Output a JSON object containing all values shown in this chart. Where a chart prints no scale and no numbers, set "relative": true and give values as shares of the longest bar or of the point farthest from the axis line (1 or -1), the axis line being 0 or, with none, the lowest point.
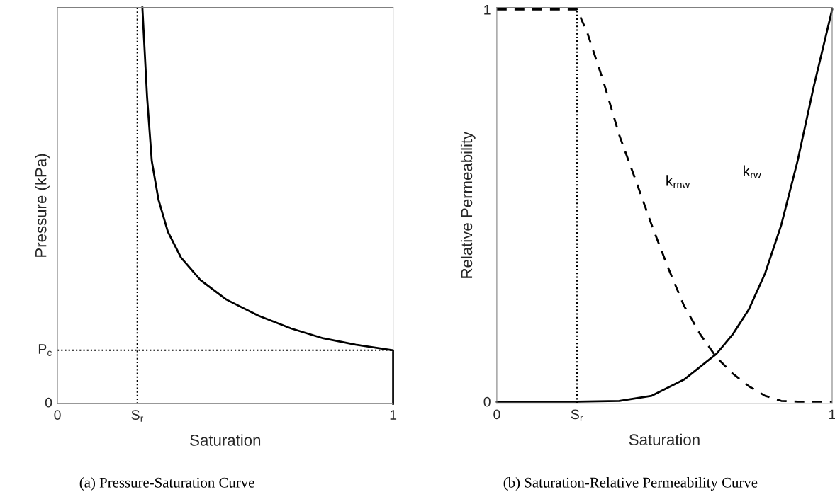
{
  "chart_data": [
    {
      "type": "line",
      "xlabel": "Saturation",
      "ylabel": "Pressure (kPa)",
      "xlim": [
        0,
        1
      ],
      "relative": true,
      "xticks": [
        0,
        {
          "value": 0.238,
          "label": "S$_{r}$"
        },
        1
      ],
      "series": [
        {
          "color": "#000000",
          "line_style": "solid",
          "x": [
            0.253,
            0.267,
            0.281,
            0.301,
            0.329,
            0.368,
            0.426,
            0.503,
            0.599,
            0.696,
            0.792,
            0.888,
            1,
            1
          ],
          "values": [
            1,
            0.775,
            0.613,
            0.515,
            0.434,
            0.369,
            0.312,
            0.263,
            0.222,
            0.19,
            0.165,
            0.149,
            0.135,
            0
          ]
        }
      ],
      "ref_lines": [
        {
          "axis": "x",
          "value": 0.238,
          "color": "#000000",
          "line_style": "dotted"
        },
        {
          "axis": "y",
          "value": 0.135,
          "label": "P$_{c}$",
          "color": "#000000",
          "line_style": "dotted"
        },
        {
          "axis": "y",
          "value": 0,
          "label": "0",
          "color": "#808080",
          "line_style": "solid"
        }
      ],
      "annotations": [
        "(a) Pressure-Saturation Curve"
      ]
    },
    {
      "type": "line",
      "xlabel": "Saturation",
      "ylabel": "Relative Permeability",
      "xlim": [
        0,
        1
      ],
      "ylim": [
        -0.004,
        1.005
      ],
      "xticks": [
        0,
        {
          "value": 0.239,
          "label": "S$_{r}$"
        },
        1
      ],
      "yticks": [
        0,
        1
      ],
      "series": [
        {
          "name": "k$_{rnw}$",
          "color": "#000000",
          "line_style": "dashed",
          "x": [
            0,
            0.239,
            0.269,
            0.317,
            0.365,
            0.414,
            0.462,
            0.51,
            0.558,
            0.607,
            0.655,
            0.703,
            0.752,
            0.8,
            0.848,
            0.897,
            1
          ],
          "values": [
            1,
            1,
            0.943,
            0.819,
            0.68,
            0.565,
            0.45,
            0.343,
            0.245,
            0.171,
            0.113,
            0.072,
            0.039,
            0.015,
            0.002,
            0,
            0
          ]
        },
        {
          "name": "k$_{rw}$",
          "color": "#000000",
          "line_style": "solid",
          "x": [
            0,
            0.239,
            0.365,
            0.462,
            0.558,
            0.655,
            0.703,
            0.752,
            0.8,
            0.848,
            0.897,
            0.945,
            1
          ],
          "values": [
            0,
            0,
            0.002,
            0.015,
            0.056,
            0.122,
            0.171,
            0.236,
            0.327,
            0.45,
            0.614,
            0.803,
            1
          ]
        }
      ],
      "ref_lines": [
        {
          "axis": "x",
          "value": 0.239,
          "color": "#000000",
          "line_style": "dotted"
        }
      ],
      "annotations": [
        "(b) Saturation-Relative Permeability Curve"
      ]
    }
  ]
}
